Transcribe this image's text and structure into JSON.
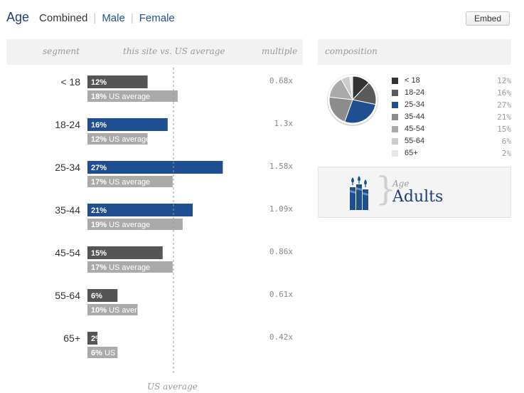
{
  "tabs": {
    "title": "Age",
    "items": [
      {
        "label": "Combined",
        "active": true
      },
      {
        "label": "Male",
        "active": false
      },
      {
        "label": "Female",
        "active": false
      }
    ],
    "separator": "|"
  },
  "embed_label": "Embed",
  "table_headers": {
    "segment": "segment",
    "comparison": "this site vs. US average",
    "multiple": "multiple",
    "composition": "composition"
  },
  "us_suffix": "US average",
  "axis_caption": "US average",
  "colors": {
    "above": "#1f4e91",
    "below": "#555555",
    "us": "#aaaaaa"
  },
  "chart_data": [
    {
      "type": "bar",
      "categories": [
        "< 18",
        "18-24",
        "25-34",
        "35-44",
        "45-54",
        "55-64",
        "65+"
      ],
      "series": [
        {
          "name": "this site",
          "values": [
            12,
            16,
            27,
            21,
            15,
            6,
            2
          ]
        },
        {
          "name": "US average",
          "values": [
            18,
            12,
            17,
            19,
            17,
            10,
            6
          ]
        }
      ],
      "multiple": [
        "0.68x",
        "1.3x",
        "1.58x",
        "1.09x",
        "0.86x",
        "0.61x",
        "0.42x"
      ],
      "unit": "%",
      "xlim": [
        0,
        35
      ]
    },
    {
      "type": "pie",
      "categories": [
        "< 18",
        "18-24",
        "25-34",
        "35-44",
        "45-54",
        "55-64",
        "65+"
      ],
      "values": [
        12,
        16,
        27,
        21,
        15,
        6,
        2
      ],
      "value_labels": [
        "12%",
        "16%",
        "27%",
        "21%",
        "15%",
        "6%",
        "2%"
      ],
      "colors": [
        "#333333",
        "#5a5a5a",
        "#1f4e91",
        "#8c8c8c",
        "#aaaaaa",
        "#cccccc",
        "#e6e6e6"
      ]
    }
  ],
  "badge": {
    "subtitle": "Age",
    "value": "Adults",
    "icon": "candles-icon"
  }
}
